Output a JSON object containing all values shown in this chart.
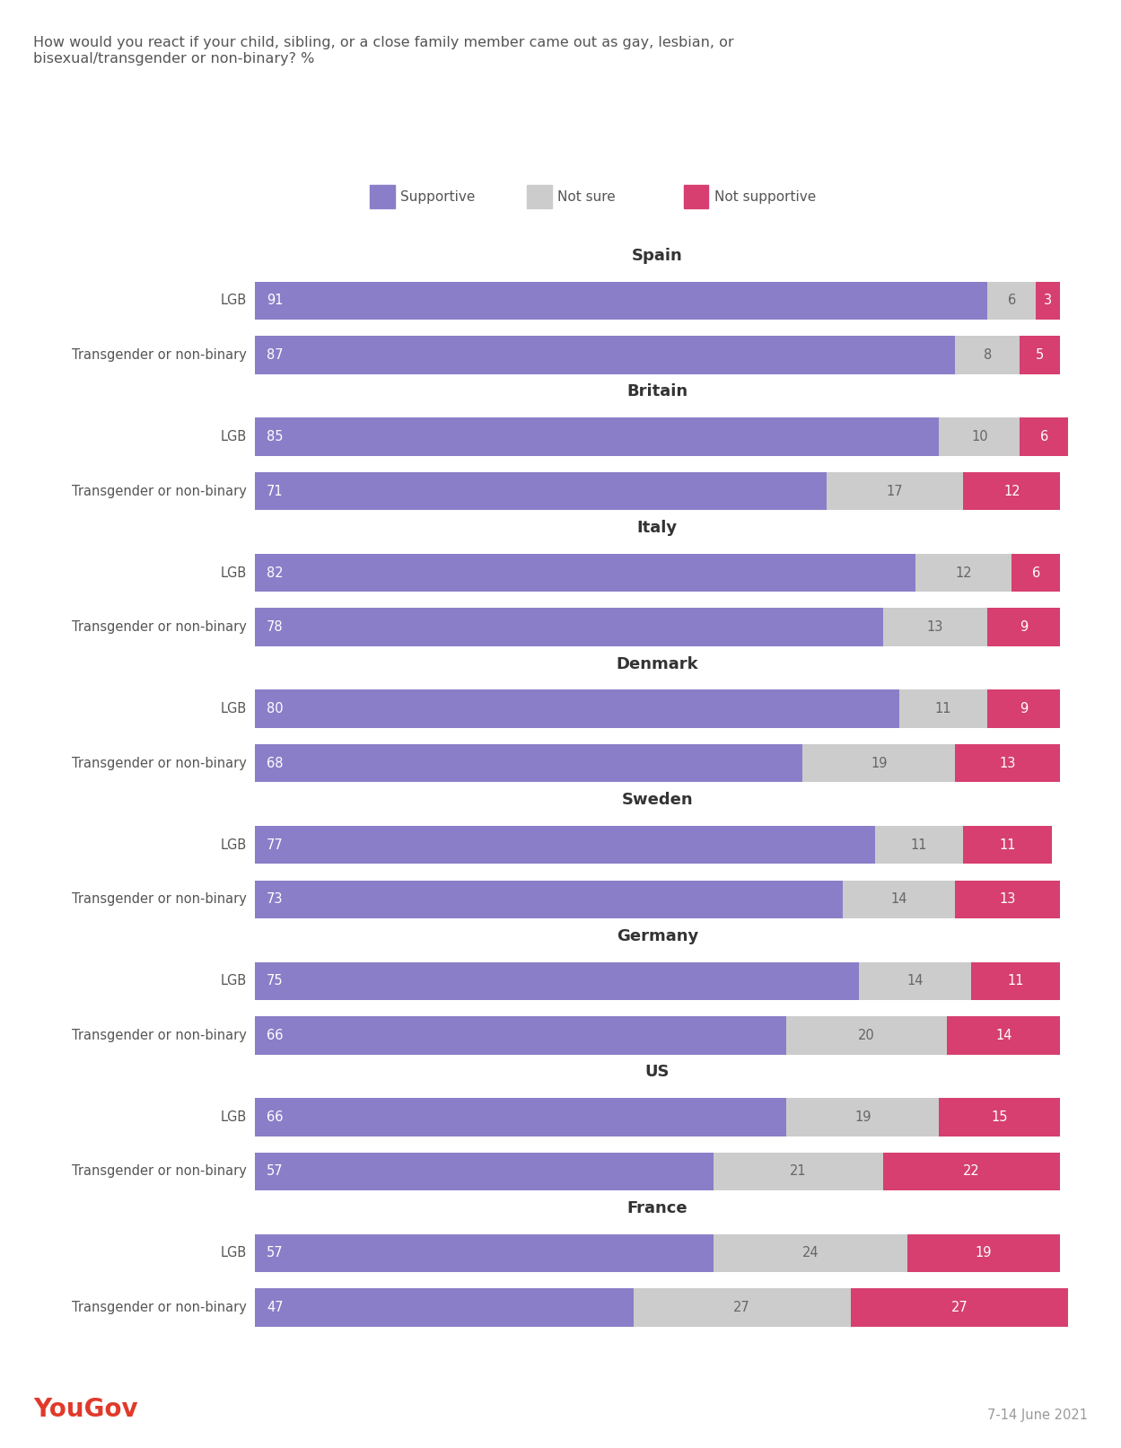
{
  "title": "How would you react if your child, sibling, or a close family member came out as gay, lesbian, or\nbisexual/transgender or non-binary? %",
  "countries": [
    "Spain",
    "Britain",
    "Italy",
    "Denmark",
    "Sweden",
    "Germany",
    "US",
    "France"
  ],
  "data": {
    "Spain": {
      "LGB": [
        91,
        6,
        3
      ],
      "Trans": [
        87,
        8,
        5
      ]
    },
    "Britain": {
      "LGB": [
        85,
        10,
        6
      ],
      "Trans": [
        71,
        17,
        12
      ]
    },
    "Italy": {
      "LGB": [
        82,
        12,
        6
      ],
      "Trans": [
        78,
        13,
        9
      ]
    },
    "Denmark": {
      "LGB": [
        80,
        11,
        9
      ],
      "Trans": [
        68,
        19,
        13
      ]
    },
    "Sweden": {
      "LGB": [
        77,
        11,
        11
      ],
      "Trans": [
        73,
        14,
        13
      ]
    },
    "Germany": {
      "LGB": [
        75,
        14,
        11
      ],
      "Trans": [
        66,
        20,
        14
      ]
    },
    "US": {
      "LGB": [
        66,
        19,
        15
      ],
      "Trans": [
        57,
        21,
        22
      ]
    },
    "France": {
      "LGB": [
        57,
        24,
        19
      ],
      "Trans": [
        47,
        27,
        27
      ]
    }
  },
  "colors": {
    "supportive": "#8B7EC8",
    "not_sure": "#CCCCCC",
    "not_supportive": "#D63F6F"
  },
  "legend_labels": [
    "Supportive",
    "Not sure",
    "Not supportive"
  ],
  "yougov_color": "#E03A2B",
  "date_text": "7-14 June 2021",
  "background_color": "#FFFFFF"
}
